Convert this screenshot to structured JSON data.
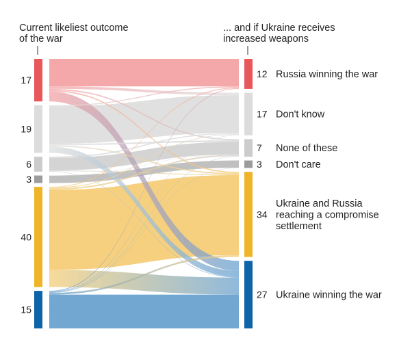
{
  "chart_data": {
    "type": "sankey",
    "title": "",
    "left_header": "Current likeliest outcome\nof the war",
    "right_header": "... and if Ukraine receives\nincreased weapons",
    "categories": [
      {
        "id": "russia",
        "left_value": "17",
        "right_value": "12",
        "right_label": "Russia winning the war",
        "color": "#e8575a",
        "flow_color": "#f4a3a5"
      },
      {
        "id": "dontknow",
        "left_value": "19",
        "right_value": "17",
        "right_label": "Don't know",
        "color": "#dcdcdc",
        "flow_color": "#dedede"
      },
      {
        "id": "none",
        "left_value": "6",
        "right_value": "7",
        "right_label": "None of these",
        "color": "#cccccc",
        "flow_color": "#d2d2d2"
      },
      {
        "id": "dontcare",
        "left_value": "3",
        "right_value": "3",
        "right_label": "Don't care",
        "color": "#9c9c9c",
        "flow_color": "#bdbdbd"
      },
      {
        "id": "compromise",
        "left_value": "40",
        "right_value": "34",
        "right_label": "Ukraine and Russia\nreaching a compromise\nsettlement",
        "color": "#f0b428",
        "flow_color": "#f5ce78"
      },
      {
        "id": "ukraine",
        "left_value": "15",
        "right_value": "27",
        "right_label": "Ukraine winning the war",
        "color": "#0f64a8",
        "flow_color": "#6aa2cf"
      }
    ],
    "left": [
      17,
      19,
      6,
      3,
      40,
      15
    ],
    "right": [
      12,
      17,
      7,
      3,
      34,
      27
    ],
    "flows": [
      [
        11,
        1,
        0.5,
        0,
        0.5,
        4
      ],
      [
        0.4,
        15,
        0.6,
        0,
        0.5,
        2.5
      ],
      [
        0,
        0.5,
        5,
        0,
        0.3,
        0.2
      ],
      [
        0,
        0,
        0.1,
        2.9,
        0,
        0
      ],
      [
        0.3,
        0.3,
        0.6,
        0,
        32,
        6.8
      ],
      [
        0.3,
        0.2,
        0.2,
        0.1,
        0.7,
        13.5
      ]
    ]
  }
}
